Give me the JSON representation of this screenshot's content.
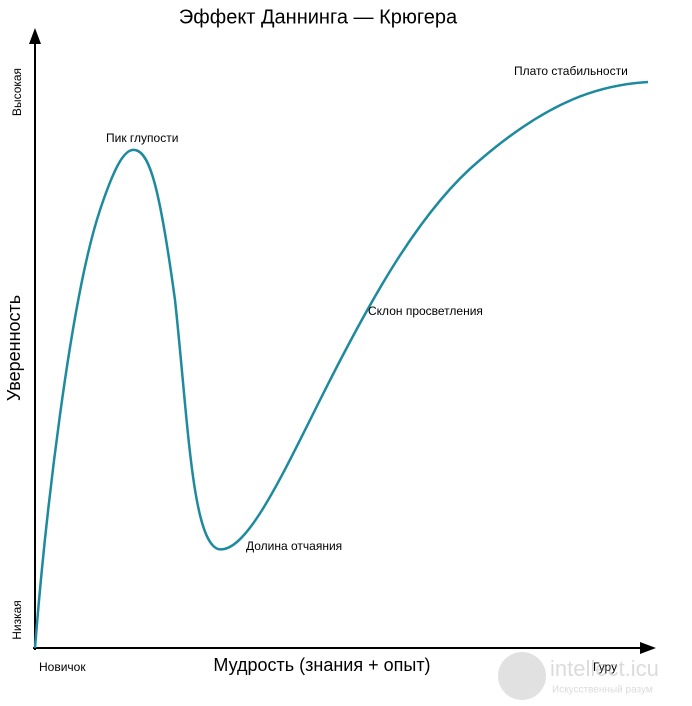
{
  "title": "Эффект Даннинга — Крюгера",
  "y_axis": {
    "label": "Уверенность",
    "high": "Высокая",
    "low": "Низкая"
  },
  "x_axis": {
    "label": "Мудрость (знания + опыт)",
    "left": "Новичок",
    "right": "Гуру"
  },
  "annotations": [
    "Пик глупости",
    "Долина отчаяния",
    "Склон просветления",
    "Плато стабильности"
  ],
  "watermark": {
    "site": "intellect.icu",
    "tagline": "Искусственный разум"
  }
}
